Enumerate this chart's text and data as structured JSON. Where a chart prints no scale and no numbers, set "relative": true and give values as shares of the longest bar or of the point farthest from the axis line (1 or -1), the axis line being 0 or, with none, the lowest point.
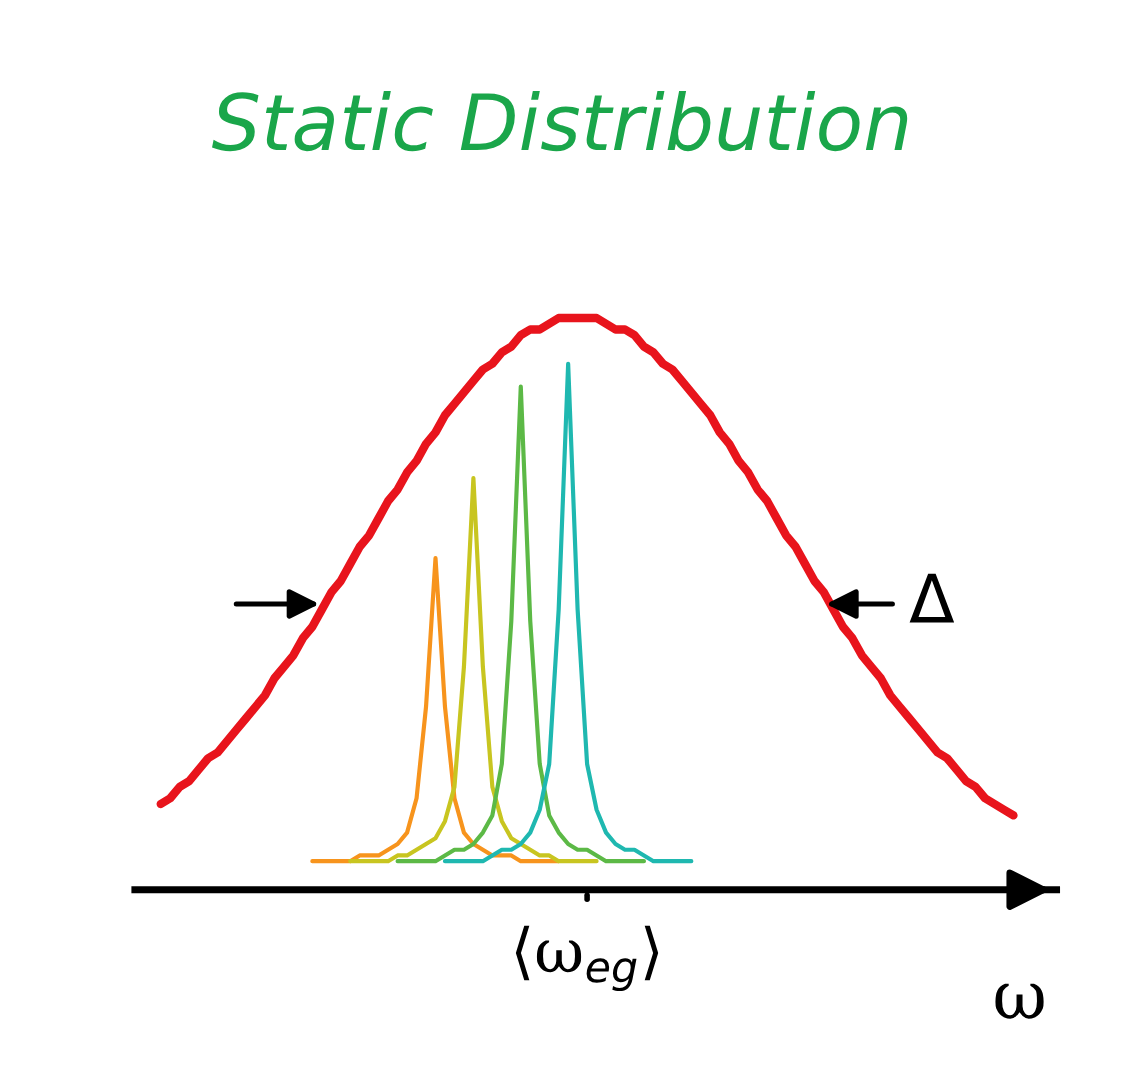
{
  "chart_data": {
    "type": "line",
    "title": "Static Distribution",
    "xlabel": "ω",
    "relative": true,
    "annotations": [
      "Δ",
      "⟨ω$_{eg}$⟩"
    ],
    "categories": [
      null,
      null,
      null,
      null,
      null,
      null,
      null,
      null,
      null,
      null,
      null,
      null,
      null,
      null,
      null,
      null,
      null,
      null,
      null,
      null,
      null,
      null,
      null,
      null,
      null,
      null,
      null,
      null,
      null,
      null,
      null,
      null,
      null,
      null,
      null,
      null,
      null,
      null,
      null,
      null,
      null,
      null,
      null,
      null,
      null,
      null,
      null,
      null,
      null,
      null,
      null,
      null,
      null,
      null,
      null,
      null,
      null,
      null,
      null,
      null,
      null,
      null,
      null,
      null,
      null,
      null,
      null,
      null,
      null,
      null,
      null,
      null,
      null,
      null,
      null,
      null,
      null,
      null,
      null,
      null,
      null,
      null,
      null,
      null,
      null,
      null,
      null,
      null,
      null,
      null,
      null
    ],
    "series": [
      {
        "color": "#e8141c",
        "values": [
          0.15,
          0.16,
          0.18,
          0.19,
          0.21,
          0.23,
          0.24,
          0.26,
          0.28,
          0.3,
          0.32,
          0.34,
          0.37,
          0.39,
          0.41,
          0.44,
          0.46,
          0.49,
          0.52,
          0.54,
          0.57,
          0.6,
          0.62,
          0.65,
          0.68,
          0.7,
          0.73,
          0.75,
          0.78,
          0.8,
          0.83,
          0.85,
          0.87,
          0.89,
          0.91,
          0.92,
          0.94,
          0.95,
          0.97,
          0.98,
          0.98,
          0.99,
          1.0,
          1.0,
          1,
          1.0,
          1.0,
          0.99,
          0.98,
          0.98,
          0.97,
          0.95,
          0.94,
          0.92,
          0.91,
          0.89,
          0.87,
          0.85,
          0.83,
          0.8,
          0.78,
          0.75,
          0.73,
          0.7,
          0.68,
          0.65,
          0.62,
          0.6,
          0.57,
          0.54,
          0.52,
          0.49,
          0.46,
          0.44,
          0.41,
          0.39,
          0.37,
          0.34,
          0.32,
          0.3,
          0.28,
          0.26,
          0.24,
          0.23,
          0.21,
          0.19,
          0.18,
          0.16,
          0.15,
          0.14,
          0.13
        ]
      },
      {
        "color": "#f7941d",
        "values": [
          null,
          null,
          null,
          null,
          null,
          null,
          null,
          null,
          null,
          null,
          null,
          null,
          null,
          null,
          null,
          null,
          0.05,
          0.05,
          0.05,
          0.05,
          0.05,
          0.06,
          0.06,
          0.06,
          0.07,
          0.08,
          0.1,
          0.16,
          0.32,
          0.58,
          0.32,
          0.16,
          0.1,
          0.08,
          0.07,
          0.06,
          0.06,
          0.06,
          0.05,
          0.05,
          0.05,
          0.05,
          0.05,
          null,
          null,
          null,
          null,
          null,
          null,
          null,
          null,
          null,
          null,
          null,
          null,
          null,
          null,
          null,
          null,
          null,
          null,
          null,
          null,
          null,
          null,
          null,
          null,
          null,
          null,
          null,
          null,
          null,
          null,
          null,
          null,
          null,
          null,
          null,
          null,
          null,
          null,
          null,
          null,
          null,
          null,
          null,
          null,
          null,
          null,
          null,
          null
        ]
      },
      {
        "color": "#c8c520",
        "values": [
          null,
          null,
          null,
          null,
          null,
          null,
          null,
          null,
          null,
          null,
          null,
          null,
          null,
          null,
          null,
          null,
          null,
          null,
          null,
          null,
          0.05,
          0.05,
          0.05,
          0.05,
          0.05,
          0.06,
          0.06,
          0.07,
          0.08,
          0.09,
          0.12,
          0.18,
          0.39,
          0.72,
          0.39,
          0.18,
          0.12,
          0.09,
          0.08,
          0.07,
          0.06,
          0.06,
          0.05,
          0.05,
          0.05,
          0.05,
          0.05,
          null,
          null,
          null,
          null,
          null,
          null,
          null,
          null,
          null,
          null,
          null,
          null,
          null,
          null,
          null,
          null,
          null,
          null,
          null,
          null,
          null,
          null,
          null,
          null,
          null,
          null,
          null,
          null,
          null,
          null,
          null,
          null,
          null,
          null,
          null,
          null,
          null,
          null,
          null,
          null,
          null,
          null,
          null,
          null
        ]
      },
      {
        "color": "#5cb946",
        "values": [
          null,
          null,
          null,
          null,
          null,
          null,
          null,
          null,
          null,
          null,
          null,
          null,
          null,
          null,
          null,
          null,
          null,
          null,
          null,
          null,
          null,
          null,
          null,
          null,
          null,
          0.05,
          0.05,
          0.05,
          0.05,
          0.05,
          0.06,
          0.07,
          0.07,
          0.08,
          0.1,
          0.13,
          0.22,
          0.47,
          0.88,
          0.47,
          0.22,
          0.13,
          0.1,
          0.08,
          0.07,
          0.07,
          0.06,
          0.05,
          0.05,
          0.05,
          0.05,
          0.05,
          null,
          null,
          null,
          null,
          null,
          null,
          null,
          null,
          null,
          null,
          null,
          null,
          null,
          null,
          null,
          null,
          null,
          null,
          null,
          null,
          null,
          null,
          null,
          null,
          null,
          null,
          null,
          null,
          null,
          null,
          null,
          null,
          null,
          null,
          null,
          null,
          null,
          null,
          null
        ]
      },
      {
        "color": "#1fb8b0",
        "values": [
          null,
          null,
          null,
          null,
          null,
          null,
          null,
          null,
          null,
          null,
          null,
          null,
          null,
          null,
          null,
          null,
          null,
          null,
          null,
          null,
          null,
          null,
          null,
          null,
          null,
          null,
          null,
          null,
          null,
          null,
          0.05,
          0.05,
          0.05,
          0.05,
          0.05,
          0.06,
          0.07,
          0.07,
          0.08,
          0.1,
          0.14,
          0.22,
          0.49,
          0.92,
          0.49,
          0.22,
          0.14,
          0.1,
          0.08,
          0.07,
          0.07,
          0.06,
          0.05,
          0.05,
          0.05,
          0.05,
          0.05,
          null,
          null,
          null,
          null,
          null,
          null,
          null,
          null,
          null,
          null,
          null,
          null,
          null,
          null,
          null,
          null,
          null,
          null,
          null,
          null,
          null,
          null,
          null,
          null,
          null,
          null,
          null,
          null,
          null,
          null,
          null,
          null,
          null,
          null
        ]
      }
    ]
  }
}
